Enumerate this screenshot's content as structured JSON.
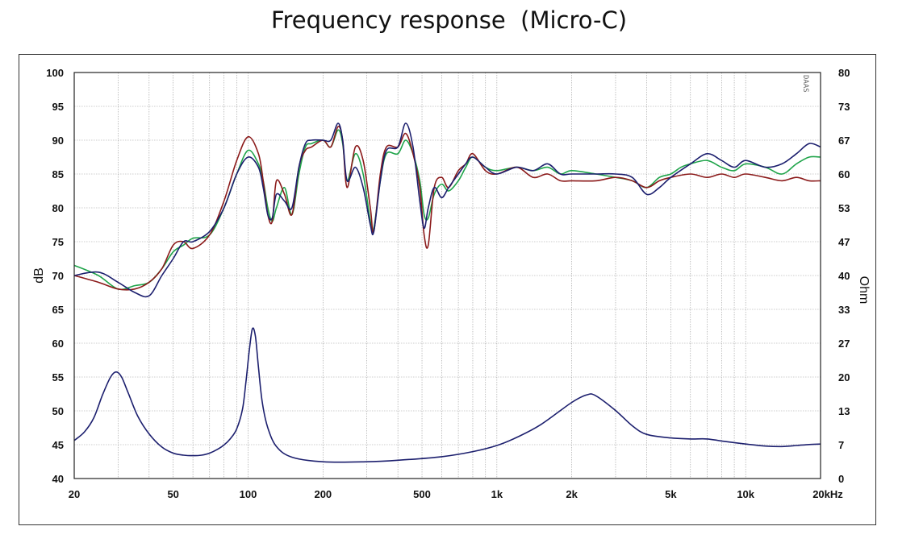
{
  "chart_data": {
    "type": "line",
    "title": "Frequency response  (Micro-C)",
    "x_scale": "log",
    "xlim": [
      20,
      20000
    ],
    "xticks": [
      {
        "v": 20,
        "label": "20"
      },
      {
        "v": 50,
        "label": "50"
      },
      {
        "v": 100,
        "label": "100"
      },
      {
        "v": 200,
        "label": "200"
      },
      {
        "v": 500,
        "label": "500"
      },
      {
        "v": 1000,
        "label": "1k"
      },
      {
        "v": 2000,
        "label": "2k"
      },
      {
        "v": 5000,
        "label": "5k"
      },
      {
        "v": 10000,
        "label": "10k"
      },
      {
        "v": 20000,
        "label": "20kHz"
      }
    ],
    "ylabel": "dB",
    "ylim": [
      40,
      100
    ],
    "yticks": [
      40,
      45,
      50,
      55,
      60,
      65,
      70,
      75,
      80,
      85,
      90,
      95,
      100
    ],
    "y2label": "Ohm",
    "y2lim": [
      0,
      80
    ],
    "y2ticks": [
      "0",
      "7",
      "13",
      "20",
      "27",
      "33",
      "40",
      "47",
      "53",
      "60",
      "67",
      "73",
      "80"
    ],
    "grid": true,
    "watermark": "DAAS",
    "colors": {
      "red": "#8b1a1a",
      "green": "#1fa44a",
      "navy": "#1c1f6e",
      "baseline": "#2db34a"
    },
    "series": [
      {
        "color": "green",
        "axis": "left",
        "points": [
          [
            20,
            71.5
          ],
          [
            25,
            70
          ],
          [
            30,
            68
          ],
          [
            35,
            68.5
          ],
          [
            40,
            69
          ],
          [
            45,
            71
          ],
          [
            50,
            73.5
          ],
          [
            55,
            74.5
          ],
          [
            60,
            75.5
          ],
          [
            70,
            76
          ],
          [
            80,
            80
          ],
          [
            90,
            85
          ],
          [
            100,
            88.5
          ],
          [
            110,
            86.5
          ],
          [
            115,
            84
          ],
          [
            120,
            80
          ],
          [
            125,
            78
          ],
          [
            130,
            80
          ],
          [
            140,
            83
          ],
          [
            150,
            79
          ],
          [
            160,
            85
          ],
          [
            170,
            89
          ],
          [
            180,
            89.5
          ],
          [
            200,
            90
          ],
          [
            215,
            89
          ],
          [
            230,
            91.5
          ],
          [
            240,
            89.5
          ],
          [
            250,
            84
          ],
          [
            270,
            88
          ],
          [
            290,
            85
          ],
          [
            310,
            78
          ],
          [
            320,
            77
          ],
          [
            340,
            84
          ],
          [
            360,
            88
          ],
          [
            400,
            88
          ],
          [
            430,
            90
          ],
          [
            460,
            88
          ],
          [
            490,
            84
          ],
          [
            510,
            79
          ],
          [
            530,
            78.5
          ],
          [
            560,
            82
          ],
          [
            600,
            83.5
          ],
          [
            640,
            82.5
          ],
          [
            700,
            84
          ],
          [
            750,
            86
          ],
          [
            800,
            87.5
          ],
          [
            900,
            86
          ],
          [
            1000,
            85.5
          ],
          [
            1200,
            86
          ],
          [
            1400,
            85.5
          ],
          [
            1600,
            86
          ],
          [
            1800,
            85
          ],
          [
            2000,
            85.5
          ],
          [
            2500,
            85
          ],
          [
            3000,
            84.5
          ],
          [
            3500,
            84
          ],
          [
            4000,
            83
          ],
          [
            4500,
            84.5
          ],
          [
            5000,
            85
          ],
          [
            5500,
            86
          ],
          [
            6000,
            86.5
          ],
          [
            7000,
            87
          ],
          [
            8000,
            86
          ],
          [
            9000,
            85.5
          ],
          [
            10000,
            86.5
          ],
          [
            12000,
            86
          ],
          [
            14000,
            85
          ],
          [
            16000,
            86.5
          ],
          [
            18000,
            87.5
          ],
          [
            20000,
            87.5
          ]
        ]
      },
      {
        "color": "red",
        "axis": "left",
        "points": [
          [
            20,
            70
          ],
          [
            25,
            69
          ],
          [
            30,
            68
          ],
          [
            35,
            68
          ],
          [
            40,
            69
          ],
          [
            45,
            71
          ],
          [
            50,
            74.5
          ],
          [
            55,
            75
          ],
          [
            60,
            74
          ],
          [
            70,
            76
          ],
          [
            80,
            81
          ],
          [
            90,
            87
          ],
          [
            100,
            90.5
          ],
          [
            110,
            88
          ],
          [
            115,
            84
          ],
          [
            120,
            79
          ],
          [
            125,
            78
          ],
          [
            130,
            84
          ],
          [
            140,
            82
          ],
          [
            150,
            79
          ],
          [
            160,
            86
          ],
          [
            170,
            88.5
          ],
          [
            180,
            89
          ],
          [
            200,
            90
          ],
          [
            215,
            89
          ],
          [
            230,
            92
          ],
          [
            240,
            90
          ],
          [
            250,
            83
          ],
          [
            270,
            89
          ],
          [
            290,
            87
          ],
          [
            310,
            80
          ],
          [
            320,
            76.5
          ],
          [
            340,
            85
          ],
          [
            360,
            89
          ],
          [
            400,
            89
          ],
          [
            430,
            91
          ],
          [
            460,
            88
          ],
          [
            490,
            83
          ],
          [
            510,
            76
          ],
          [
            530,
            74.5
          ],
          [
            560,
            83
          ],
          [
            600,
            84.5
          ],
          [
            640,
            83
          ],
          [
            700,
            85.5
          ],
          [
            750,
            86.5
          ],
          [
            800,
            88
          ],
          [
            900,
            85.5
          ],
          [
            1000,
            85
          ],
          [
            1200,
            86
          ],
          [
            1400,
            84.5
          ],
          [
            1600,
            85
          ],
          [
            1800,
            84
          ],
          [
            2000,
            84
          ],
          [
            2500,
            84
          ],
          [
            3000,
            84.5
          ],
          [
            3500,
            84
          ],
          [
            4000,
            83
          ],
          [
            4500,
            84
          ],
          [
            5000,
            84.5
          ],
          [
            6000,
            85
          ],
          [
            7000,
            84.5
          ],
          [
            8000,
            85
          ],
          [
            9000,
            84.5
          ],
          [
            10000,
            85
          ],
          [
            12000,
            84.5
          ],
          [
            14000,
            84
          ],
          [
            16000,
            84.5
          ],
          [
            18000,
            84
          ],
          [
            20000,
            84
          ]
        ]
      },
      {
        "color": "navy",
        "axis": "left",
        "points": [
          [
            20,
            70
          ],
          [
            25,
            70.5
          ],
          [
            30,
            69
          ],
          [
            35,
            67.5
          ],
          [
            40,
            67
          ],
          [
            45,
            70
          ],
          [
            50,
            72.5
          ],
          [
            55,
            75
          ],
          [
            60,
            75
          ],
          [
            70,
            76.5
          ],
          [
            80,
            80
          ],
          [
            90,
            85
          ],
          [
            100,
            87.5
          ],
          [
            110,
            86
          ],
          [
            115,
            83
          ],
          [
            120,
            79
          ],
          [
            125,
            78.5
          ],
          [
            130,
            82
          ],
          [
            140,
            81
          ],
          [
            150,
            80
          ],
          [
            160,
            86
          ],
          [
            170,
            89.5
          ],
          [
            180,
            90
          ],
          [
            200,
            90
          ],
          [
            215,
            90
          ],
          [
            230,
            92.5
          ],
          [
            240,
            90
          ],
          [
            250,
            84
          ],
          [
            270,
            86
          ],
          [
            290,
            83
          ],
          [
            310,
            77.5
          ],
          [
            320,
            76.5
          ],
          [
            340,
            84
          ],
          [
            360,
            88.5
          ],
          [
            400,
            89
          ],
          [
            430,
            92.5
          ],
          [
            460,
            89
          ],
          [
            490,
            81
          ],
          [
            510,
            77
          ],
          [
            530,
            80
          ],
          [
            560,
            83
          ],
          [
            600,
            81.5
          ],
          [
            640,
            83
          ],
          [
            700,
            85
          ],
          [
            750,
            86.5
          ],
          [
            800,
            87.5
          ],
          [
            900,
            86
          ],
          [
            1000,
            85
          ],
          [
            1200,
            86
          ],
          [
            1400,
            85.5
          ],
          [
            1600,
            86.5
          ],
          [
            1800,
            85
          ],
          [
            2000,
            85
          ],
          [
            2500,
            85
          ],
          [
            3000,
            85
          ],
          [
            3500,
            84.5
          ],
          [
            4000,
            82
          ],
          [
            4500,
            83
          ],
          [
            5000,
            84.5
          ],
          [
            6000,
            86.5
          ],
          [
            7000,
            88
          ],
          [
            8000,
            87
          ],
          [
            9000,
            86
          ],
          [
            10000,
            87
          ],
          [
            12000,
            86
          ],
          [
            14000,
            86.5
          ],
          [
            16000,
            88
          ],
          [
            18000,
            89.5
          ],
          [
            20000,
            89
          ]
        ]
      },
      {
        "color": "navy",
        "axis": "right",
        "points": [
          [
            20,
            7.5
          ],
          [
            22,
            9.2
          ],
          [
            24,
            12
          ],
          [
            26,
            16.5
          ],
          [
            28,
            20
          ],
          [
            29.5,
            21
          ],
          [
            31,
            20
          ],
          [
            33,
            16.8
          ],
          [
            36,
            12.3
          ],
          [
            40,
            8.8
          ],
          [
            45,
            6.2
          ],
          [
            50,
            5
          ],
          [
            55,
            4.6
          ],
          [
            60,
            4.5
          ],
          [
            65,
            4.6
          ],
          [
            70,
            5
          ],
          [
            75,
            5.7
          ],
          [
            80,
            6.6
          ],
          [
            85,
            7.9
          ],
          [
            90,
            9.8
          ],
          [
            95,
            13.7
          ],
          [
            98,
            19
          ],
          [
            101,
            25
          ],
          [
            104,
            29.5
          ],
          [
            107,
            28
          ],
          [
            110,
            22
          ],
          [
            114,
            15
          ],
          [
            120,
            10
          ],
          [
            130,
            6.3
          ],
          [
            150,
            4.2
          ],
          [
            200,
            3.3
          ],
          [
            300,
            3.3
          ],
          [
            400,
            3.6
          ],
          [
            600,
            4.3
          ],
          [
            800,
            5.3
          ],
          [
            1000,
            6.5
          ],
          [
            1200,
            8.1
          ],
          [
            1500,
            10.6
          ],
          [
            2000,
            15
          ],
          [
            2300,
            16.5
          ],
          [
            2500,
            16.3
          ],
          [
            3000,
            13.4
          ],
          [
            3500,
            10.4
          ],
          [
            4000,
            8.7
          ],
          [
            5000,
            8
          ],
          [
            6000,
            7.8
          ],
          [
            7000,
            7.8
          ],
          [
            8000,
            7.4
          ],
          [
            10000,
            6.8
          ],
          [
            12000,
            6.4
          ],
          [
            14000,
            6.3
          ],
          [
            16000,
            6.5
          ],
          [
            18000,
            6.7
          ],
          [
            20000,
            6.8
          ]
        ]
      },
      {
        "color": "baseline",
        "axis": "left",
        "points": [
          [
            20,
            40
          ],
          [
            20000,
            40
          ]
        ]
      }
    ]
  }
}
